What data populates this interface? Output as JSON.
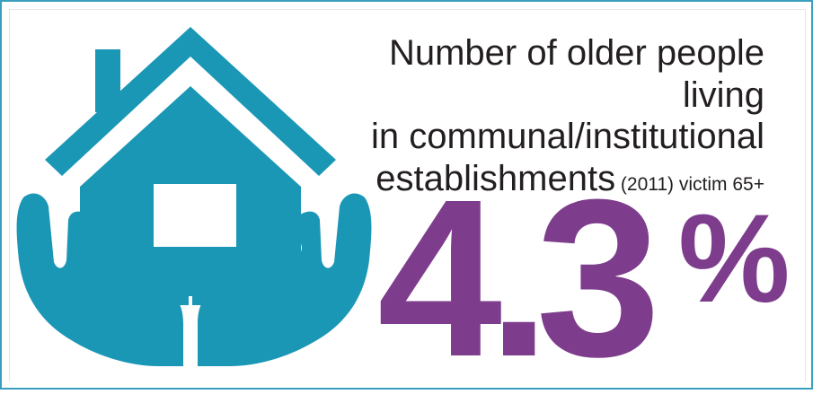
{
  "headline": {
    "line1": "Number of older people living",
    "line2": "in communal/institutional",
    "line3_main": "establishments",
    "line3_small": " (2011) victim 65+"
  },
  "stat": {
    "value": "4.3",
    "unit": "%"
  },
  "colors": {
    "teal": "#1b97b6",
    "purple": "#7d3d8c",
    "border": "#3a9fbe",
    "text": "#231f20"
  },
  "icons": [
    "house-in-hands-icon"
  ]
}
